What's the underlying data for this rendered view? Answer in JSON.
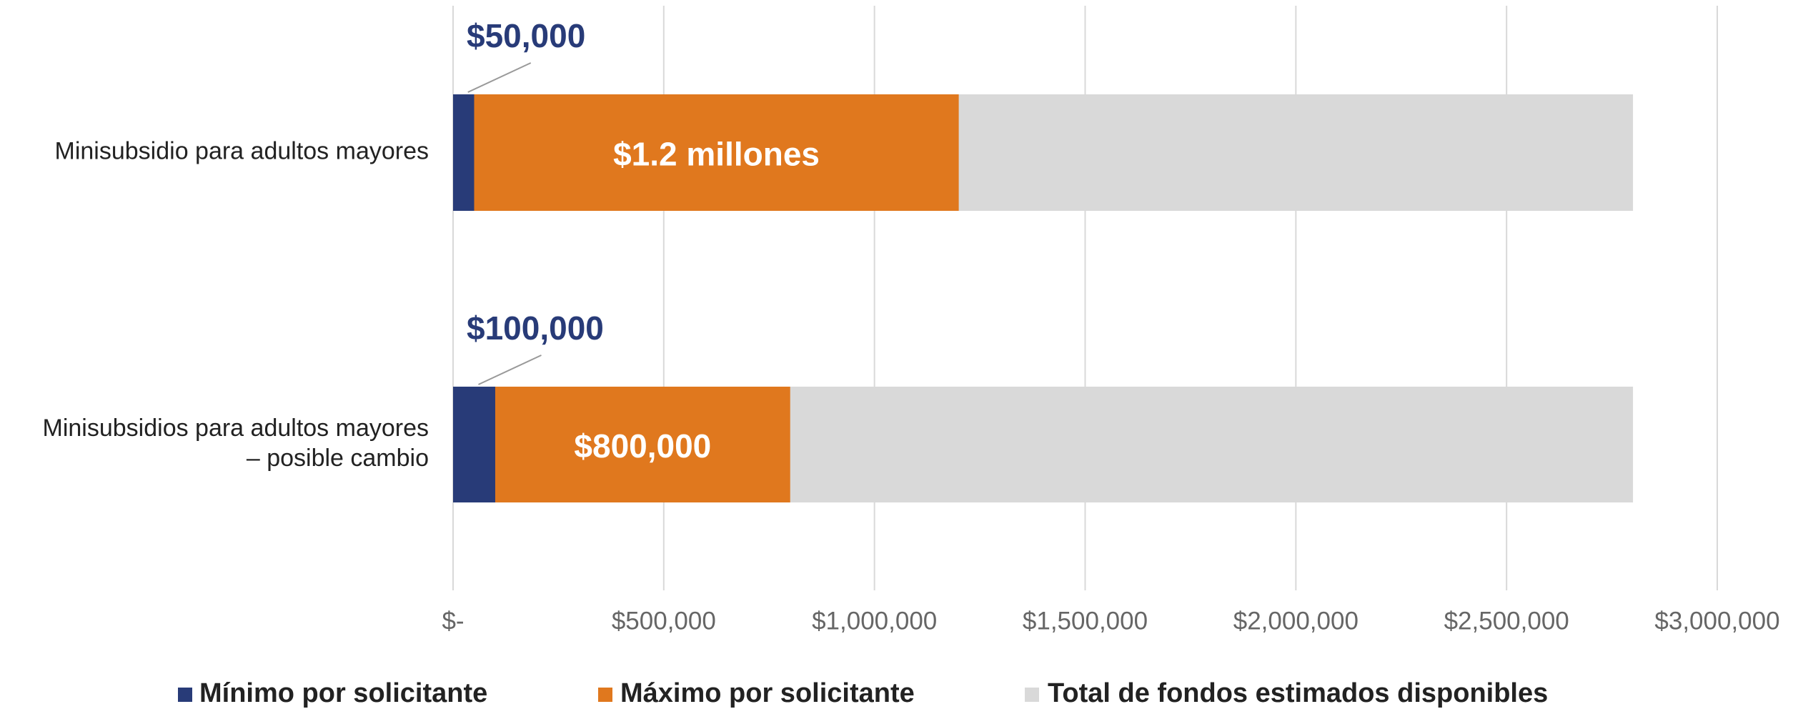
{
  "chart_data": {
    "type": "bar",
    "orientation": "horizontal",
    "layout": "overlap",
    "categories": [
      "Minisubsidio para adultos mayores",
      "Minisubsidios para adultos mayores\n– posible cambio"
    ],
    "series": [
      {
        "name": "Total de fondos estimados disponibles",
        "color": "#d9d9d9",
        "values": [
          2800000,
          2800000
        ]
      },
      {
        "name": "Máximo por solicitante",
        "color": "#e0781e",
        "values": [
          1200000,
          800000
        ],
        "value_labels": [
          "$1.2 millones",
          "$800,000"
        ]
      },
      {
        "name": "Mínimo por solicitante",
        "color": "#283b78",
        "values": [
          50000,
          100000
        ],
        "value_labels": [
          "$50,000",
          "$100,000"
        ]
      }
    ],
    "xlim": [
      0,
      3000000
    ],
    "xticks": [
      {
        "value": 0,
        "label": "$-"
      },
      {
        "value": 500000,
        "label": "$500,000"
      },
      {
        "value": 1000000,
        "label": "$1,000,000"
      },
      {
        "value": 1500000,
        "label": "$1,500,000"
      },
      {
        "value": 2000000,
        "label": "$2,000,000"
      },
      {
        "value": 2500000,
        "label": "$2,500,000"
      },
      {
        "value": 3000000,
        "label": "$3,000,000"
      }
    ],
    "grid": true,
    "legend": "bottom"
  }
}
